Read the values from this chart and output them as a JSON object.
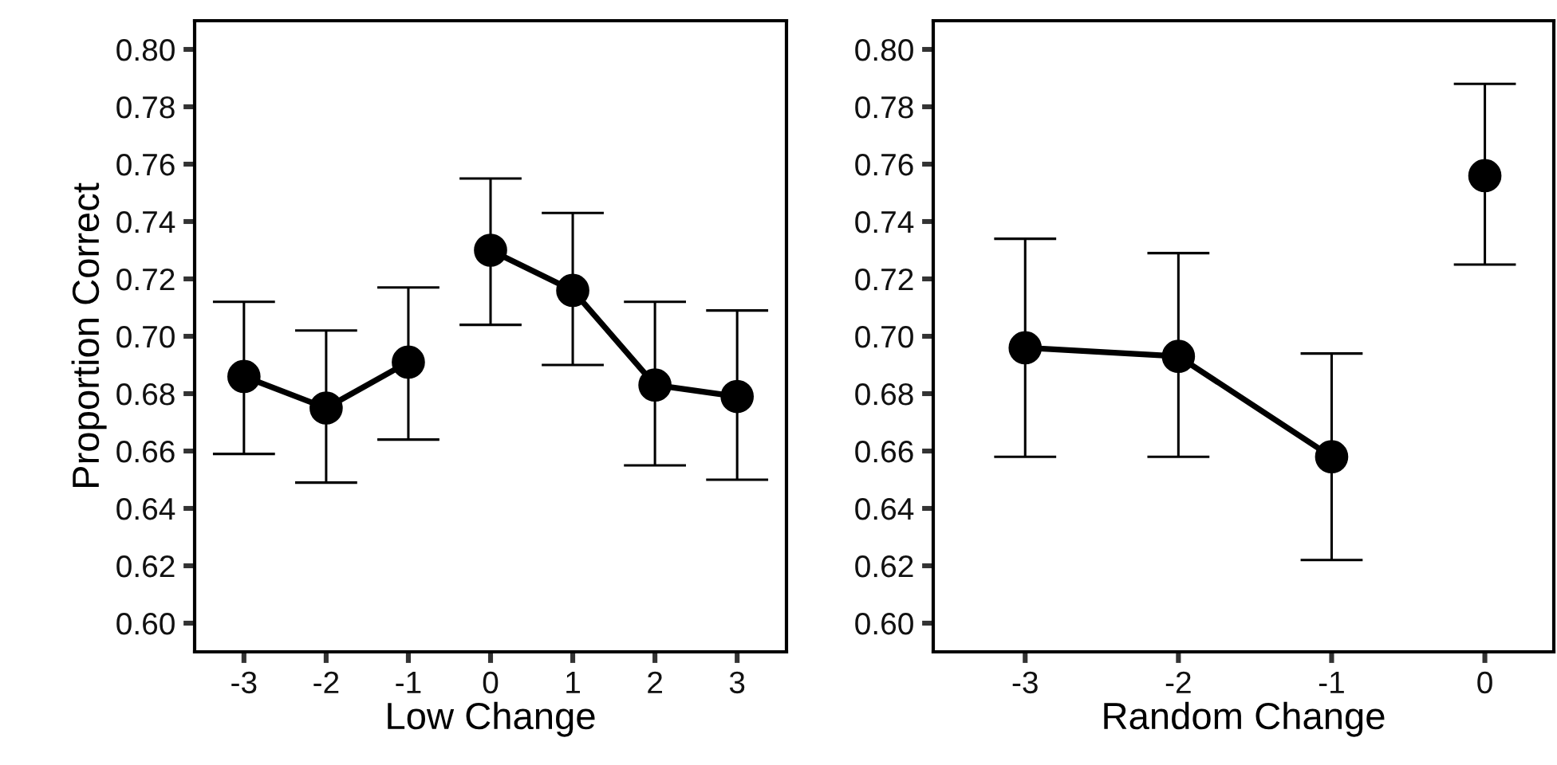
{
  "chart_data": [
    {
      "type": "line",
      "xlabel": "Low Change",
      "ylabel": "Proportion Correct",
      "marker": "circle",
      "line_style": "solid",
      "grid": false,
      "legend": false,
      "xlim": [
        -3.6,
        3.6
      ],
      "xticks": [
        -3,
        -2,
        -1,
        0,
        1,
        2,
        3
      ],
      "ylim": [
        0.59,
        0.81
      ],
      "yticks": [
        {
          "value": 0.6,
          "label": "0.60"
        },
        {
          "value": 0.62,
          "label": "0.62"
        },
        {
          "value": 0.64,
          "label": "0.64"
        },
        {
          "value": 0.66,
          "label": "0.66"
        },
        {
          "value": 0.68,
          "label": "0.68"
        },
        {
          "value": 0.7,
          "label": "0.70"
        },
        {
          "value": 0.72,
          "label": "0.72"
        },
        {
          "value": 0.74,
          "label": "0.74"
        },
        {
          "value": 0.76,
          "label": "0.76"
        },
        {
          "value": 0.78,
          "label": "0.78"
        },
        {
          "value": 0.8,
          "label": "0.80"
        }
      ],
      "series": [
        {
          "color": "#000000",
          "x": [
            -3,
            -2,
            -1
          ],
          "values": [
            0.686,
            0.675,
            0.691
          ],
          "errors": [
            [
              0.659,
              0.712
            ],
            [
              0.649,
              0.702
            ],
            [
              0.664,
              0.717
            ]
          ]
        },
        {
          "color": "#000000",
          "x": [
            0,
            1,
            2,
            3
          ],
          "values": [
            0.73,
            0.716,
            0.683,
            0.679
          ],
          "errors": [
            [
              0.704,
              0.755
            ],
            [
              0.69,
              0.743
            ],
            [
              0.655,
              0.712
            ],
            [
              0.65,
              0.709
            ]
          ]
        }
      ]
    },
    {
      "type": "line",
      "xlabel": "Random Change",
      "marker": "circle",
      "line_style": "solid",
      "grid": false,
      "legend": false,
      "xlim": [
        -3.6,
        0.45
      ],
      "xticks": [
        -3,
        -2,
        -1,
        0
      ],
      "ylim": [
        0.59,
        0.81
      ],
      "yticks": [
        {
          "value": 0.6,
          "label": "0.60"
        },
        {
          "value": 0.62,
          "label": "0.62"
        },
        {
          "value": 0.64,
          "label": "0.64"
        },
        {
          "value": 0.66,
          "label": "0.66"
        },
        {
          "value": 0.68,
          "label": "0.68"
        },
        {
          "value": 0.7,
          "label": "0.70"
        },
        {
          "value": 0.72,
          "label": "0.72"
        },
        {
          "value": 0.74,
          "label": "0.74"
        },
        {
          "value": 0.76,
          "label": "0.76"
        },
        {
          "value": 0.78,
          "label": "0.78"
        },
        {
          "value": 0.8,
          "label": "0.80"
        }
      ],
      "series": [
        {
          "color": "#000000",
          "x": [
            -3,
            -2,
            -1
          ],
          "values": [
            0.696,
            0.693,
            0.658
          ],
          "errors": [
            [
              0.658,
              0.734
            ],
            [
              0.658,
              0.729
            ],
            [
              0.622,
              0.694
            ]
          ]
        },
        {
          "color": "#000000",
          "x": [
            0
          ],
          "values": [
            0.756
          ],
          "errors": [
            [
              0.725,
              0.788
            ]
          ]
        }
      ]
    }
  ]
}
